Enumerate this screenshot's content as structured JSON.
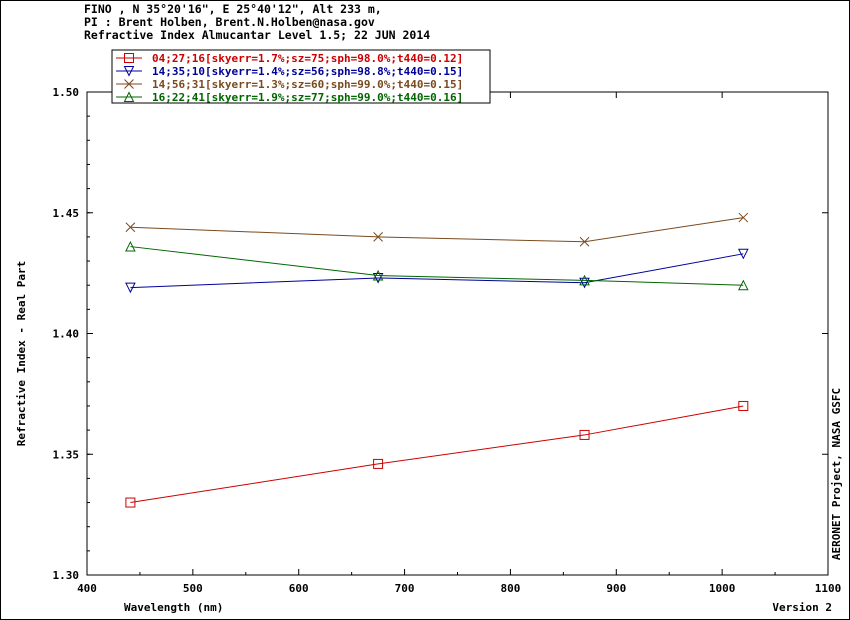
{
  "header": {
    "line1": "FINO , N 35°20'16\", E 25°40'12\", Alt 233 m,",
    "line2": "PI : Brent Holben, Brent.N.Holben@nasa.gov",
    "line3": "Refractive Index Almucantar Level 1.5; 22 JUN 2014"
  },
  "footer": {
    "version": "Version 2",
    "credit": "AERONET Project, NASA GSFC"
  },
  "chart_data": {
    "type": "line",
    "xlabel": "Wavelength (nm)",
    "ylabel": "Refractive Index - Real Part",
    "xlim": [
      400,
      1100
    ],
    "ylim": [
      1.3,
      1.5
    ],
    "xticks": [
      400,
      500,
      600,
      700,
      800,
      900,
      1000,
      1100
    ],
    "yticks": [
      1.3,
      1.35,
      1.4,
      1.45,
      1.5
    ],
    "ytick_labels": [
      "1.30",
      "1.35",
      "1.40",
      "1.45",
      "1.50"
    ],
    "grid": false,
    "legend_position": "top-left",
    "x": [
      441,
      675,
      870,
      1020
    ],
    "series": [
      {
        "name": "04;27;16[skyerr=1.7%;sz=75;sph=98.0%;t440=0.12]",
        "color": "#cc0000",
        "marker": "square",
        "values": [
          1.33,
          1.346,
          1.358,
          1.37
        ]
      },
      {
        "name": "14;35;10[skyerr=1.4%;sz=56;sph=98.8%;t440=0.15]",
        "color": "#000099",
        "marker": "triangle-down",
        "values": [
          1.419,
          1.423,
          1.421,
          1.433
        ]
      },
      {
        "name": "14;56;31[skyerr=1.3%;sz=60;sph=99.0%;t440=0.15]",
        "color": "#7a4a1e",
        "marker": "x",
        "values": [
          1.444,
          1.44,
          1.438,
          1.448
        ]
      },
      {
        "name": "16;22;41[skyerr=1.9%;sz=77;sph=99.0%;t440=0.16]",
        "color": "#006600",
        "marker": "triangle-up",
        "values": [
          1.436,
          1.424,
          1.422,
          1.42
        ]
      }
    ]
  }
}
